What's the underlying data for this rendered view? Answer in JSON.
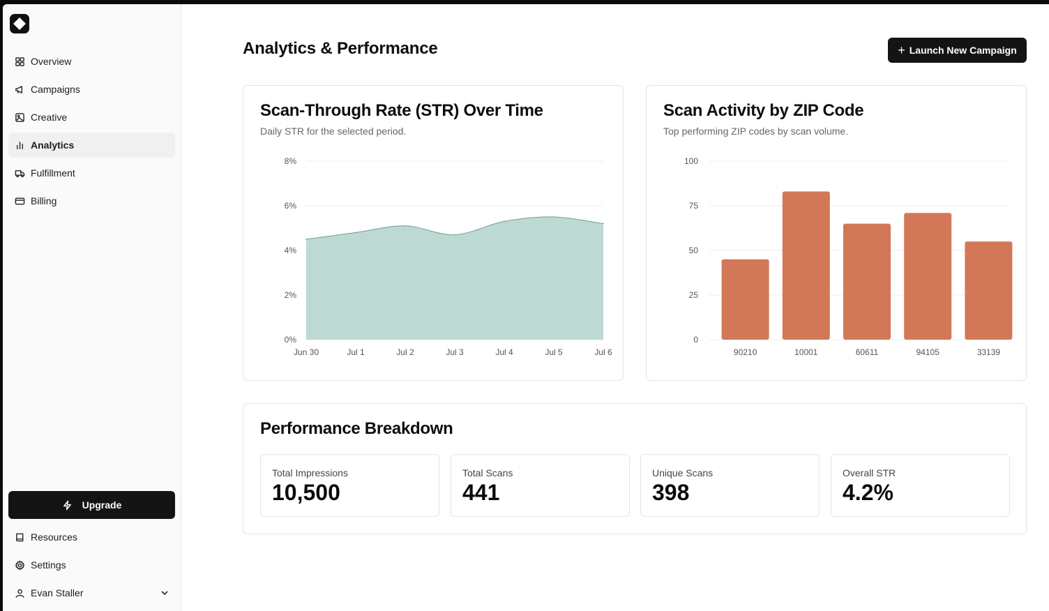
{
  "sidebar": {
    "logo_icon": "brand-logo-icon",
    "items": [
      {
        "label": "Overview",
        "icon": "grid-icon"
      },
      {
        "label": "Campaigns",
        "icon": "megaphone-icon"
      },
      {
        "label": "Creative",
        "icon": "image-icon"
      },
      {
        "label": "Analytics",
        "icon": "bar-chart-icon",
        "active": true
      },
      {
        "label": "Fulfillment",
        "icon": "truck-icon"
      },
      {
        "label": "Billing",
        "icon": "credit-card-icon"
      }
    ],
    "upgrade_label": "Upgrade",
    "bottom_items": [
      {
        "label": "Resources",
        "icon": "book-icon"
      },
      {
        "label": "Settings",
        "icon": "gear-icon"
      },
      {
        "label": "Evan Staller",
        "icon": "user-icon"
      }
    ]
  },
  "header": {
    "title": "Analytics & Performance",
    "launch_label": "Launch New Campaign"
  },
  "str_card": {
    "title": "Scan-Through Rate (STR) Over Time",
    "subtitle": "Daily STR for the selected period."
  },
  "zip_card": {
    "title": "Scan Activity by ZIP Code",
    "subtitle": "Top performing ZIP codes by scan volume."
  },
  "chart_data": [
    {
      "type": "area",
      "title": "Scan-Through Rate (STR) Over Time",
      "x": [
        "Jun 30",
        "Jul 1",
        "Jul 2",
        "Jul 3",
        "Jul 4",
        "Jul 5",
        "Jul 6"
      ],
      "values": [
        4.5,
        4.8,
        5.1,
        4.7,
        5.3,
        5.5,
        5.2
      ],
      "yticks": [
        "0%",
        "2%",
        "4%",
        "6%",
        "8%"
      ],
      "ylim": [
        0,
        8
      ],
      "grid": true,
      "color": "#bed9d4",
      "line_color": "#6f9e93"
    },
    {
      "type": "bar",
      "title": "Scan Activity by ZIP Code",
      "categories": [
        "90210",
        "10001",
        "60611",
        "94105",
        "33139"
      ],
      "values": [
        45,
        83,
        65,
        71,
        55
      ],
      "yticks": [
        "0",
        "25",
        "50",
        "75",
        "100"
      ],
      "ylim": [
        0,
        100
      ],
      "grid": true,
      "color": "#d27858"
    }
  ],
  "breakdown": {
    "title": "Performance Breakdown",
    "stats": [
      {
        "label": "Total Impressions",
        "value": "10,500"
      },
      {
        "label": "Total Scans",
        "value": "441"
      },
      {
        "label": "Unique Scans",
        "value": "398"
      },
      {
        "label": "Overall STR",
        "value": "4.2%"
      }
    ]
  }
}
